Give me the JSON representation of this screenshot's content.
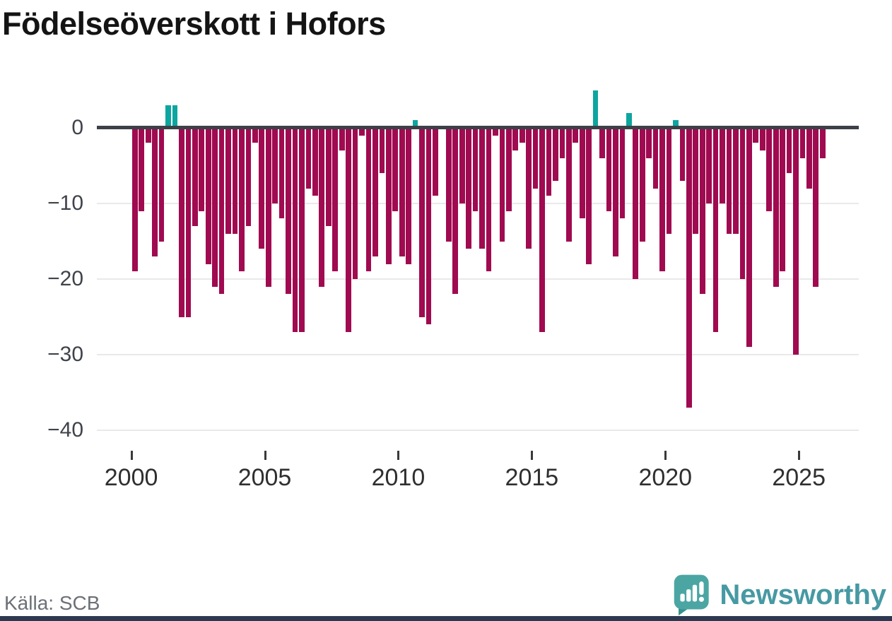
{
  "title": "Födelseöverskott i Hofors",
  "source": "Källa: SCB",
  "branding": {
    "logo_text": "Newsworthy"
  },
  "colors": {
    "negative_bar": "#a00a50",
    "positive_bar": "#0da5a0",
    "axis": "#3d4147",
    "grid": "#e9e9e9",
    "brand_teal": "#4799a3",
    "footer_strip": "#2c3950"
  },
  "chart_data": {
    "type": "bar",
    "title": "Födelseöverskott i Hofors",
    "xlabel": "",
    "ylabel": "",
    "frequency": "quarterly",
    "ylim": [
      -40,
      6
    ],
    "grid": "horizontal",
    "y_ticks": [
      0,
      -10,
      -20,
      -30,
      -40
    ],
    "y_tick_labels": [
      "0",
      "−10",
      "−20",
      "−30",
      "−40"
    ],
    "x_ticks": [
      2000,
      2005,
      2010,
      2015,
      2020,
      2025
    ],
    "series": [
      {
        "year": 2000,
        "values": [
          -19,
          -11,
          -2,
          -17
        ]
      },
      {
        "year": 2001,
        "values": [
          -15,
          3,
          3,
          -25
        ]
      },
      {
        "year": 2002,
        "values": [
          -25,
          -13,
          -11,
          -18
        ]
      },
      {
        "year": 2003,
        "values": [
          -21,
          -22,
          -14,
          -14
        ]
      },
      {
        "year": 2004,
        "values": [
          -19,
          -13,
          -2,
          -16
        ]
      },
      {
        "year": 2005,
        "values": [
          -21,
          -10,
          -12,
          -22
        ]
      },
      {
        "year": 2006,
        "values": [
          -27,
          -27,
          -8,
          -9
        ]
      },
      {
        "year": 2007,
        "values": [
          -21,
          -13,
          -19,
          -3
        ]
      },
      {
        "year": 2008,
        "values": [
          -27,
          -20,
          -1,
          -19
        ]
      },
      {
        "year": 2009,
        "values": [
          -17,
          -6,
          -18,
          -11
        ]
      },
      {
        "year": 2010,
        "values": [
          -17,
          -18,
          1,
          -25
        ]
      },
      {
        "year": 2011,
        "values": [
          -26,
          -9,
          0,
          -15
        ]
      },
      {
        "year": 2012,
        "values": [
          -22,
          -10,
          -16,
          -11
        ]
      },
      {
        "year": 2013,
        "values": [
          -16,
          -19,
          -1,
          -15
        ]
      },
      {
        "year": 2014,
        "values": [
          -11,
          -3,
          -2,
          -16
        ]
      },
      {
        "year": 2015,
        "values": [
          -8,
          -27,
          -9,
          -7
        ]
      },
      {
        "year": 2016,
        "values": [
          -4,
          -15,
          -2,
          -12
        ]
      },
      {
        "year": 2017,
        "values": [
          -18,
          5,
          -4,
          -11
        ]
      },
      {
        "year": 2018,
        "values": [
          -17,
          -12,
          2,
          -20
        ]
      },
      {
        "year": 2019,
        "values": [
          -15,
          -4,
          -8,
          -19
        ]
      },
      {
        "year": 2020,
        "values": [
          -14,
          1,
          -7,
          -37
        ]
      },
      {
        "year": 2021,
        "values": [
          -14,
          -22,
          -10,
          -27
        ]
      },
      {
        "year": 2022,
        "values": [
          -10,
          -14,
          -14,
          -20
        ]
      },
      {
        "year": 2023,
        "values": [
          -29,
          -2,
          -3,
          -11
        ]
      },
      {
        "year": 2024,
        "values": [
          -21,
          -19,
          -6,
          -30
        ]
      },
      {
        "year": 2025,
        "values": [
          -4,
          -8,
          -21,
          -4
        ]
      }
    ]
  }
}
